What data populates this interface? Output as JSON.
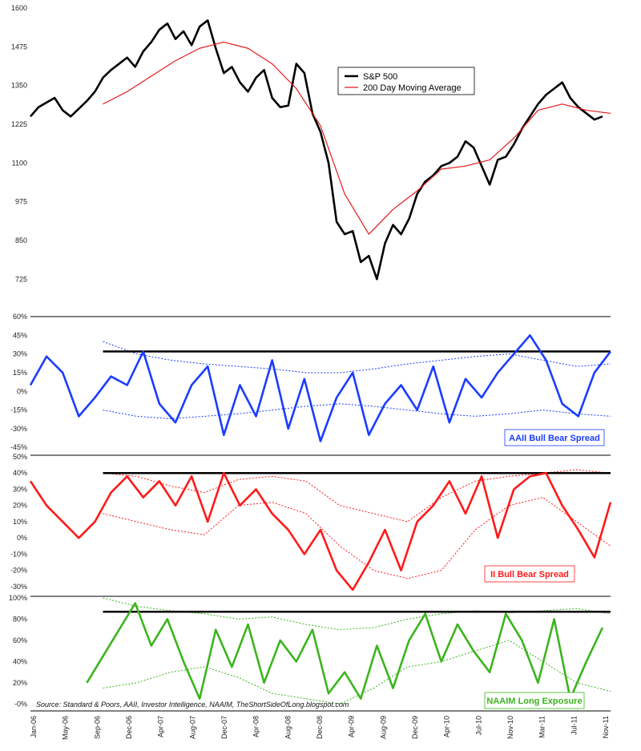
{
  "colors": {
    "sp500": "#000000",
    "ma200": "#e31a1c",
    "aaii": "#1a3cff",
    "ii": "#ff1a1a",
    "naaim": "#3cb41e"
  },
  "source_text": "Source: Standard & Poors, AAII, Investor Intelligence, NAAIM, TheShortSideOfLong.blogspot.com",
  "chart_data": [
    {
      "type": "line",
      "legend": [
        "S&P 500",
        "200 Day Moving Average"
      ],
      "legend_position": "top-right",
      "yticks": [
        "1600",
        "1475",
        "1350",
        "1225",
        "1100",
        "975",
        "850",
        "725"
      ],
      "ylim": [
        630,
        1600
      ],
      "xlim": [
        0,
        72
      ],
      "series": [
        {
          "name": "S&P 500",
          "color": "#000000",
          "x": [
            0,
            1,
            2,
            3,
            4,
            5,
            6,
            7,
            8,
            9,
            10,
            11,
            12,
            13,
            14,
            15,
            16,
            17,
            18,
            19,
            20,
            21,
            22,
            23,
            24,
            25,
            26,
            27,
            28,
            29,
            30,
            31,
            32,
            33,
            34,
            35,
            36,
            37,
            38,
            39,
            40,
            41,
            42,
            43,
            44,
            45,
            46,
            47,
            48,
            49,
            50,
            51,
            52,
            53,
            54,
            55,
            56,
            57,
            58,
            59,
            60,
            61,
            62,
            63,
            64,
            65,
            66,
            67,
            68,
            69,
            70,
            71
          ],
          "values": [
            1250,
            1280,
            1295,
            1310,
            1270,
            1250,
            1275,
            1300,
            1330,
            1375,
            1400,
            1420,
            1440,
            1410,
            1460,
            1490,
            1530,
            1550,
            1500,
            1525,
            1480,
            1540,
            1560,
            1470,
            1390,
            1410,
            1360,
            1330,
            1375,
            1400,
            1310,
            1280,
            1285,
            1420,
            1390,
            1260,
            1200,
            1100,
            910,
            870,
            880,
            780,
            800,
            725,
            840,
            900,
            870,
            920,
            1000,
            1040,
            1060,
            1090,
            1100,
            1120,
            1170,
            1150,
            1090,
            1030,
            1110,
            1120,
            1160,
            1210,
            1250,
            1290,
            1320,
            1340,
            1360,
            1310,
            1280,
            1260,
            1240,
            1250
          ]
        },
        {
          "name": "200 Day Moving Average",
          "color": "#e31a1c",
          "x": [
            9,
            12,
            15,
            18,
            21,
            24,
            27,
            30,
            33,
            36,
            39,
            42,
            45,
            48,
            51,
            54,
            57,
            60,
            63,
            66,
            69,
            72
          ],
          "values": [
            1290,
            1330,
            1380,
            1430,
            1470,
            1490,
            1470,
            1420,
            1340,
            1220,
            1000,
            870,
            950,
            1010,
            1080,
            1090,
            1110,
            1180,
            1270,
            1290,
            1270,
            1260
          ]
        }
      ]
    },
    {
      "type": "line",
      "legend": [
        "AAII Bull Bear Spread"
      ],
      "yticks": [
        "60%",
        "45%",
        "30%",
        "15%",
        "0%",
        "-15%",
        "-30%",
        "-45%"
      ],
      "ylim": [
        -50,
        60
      ],
      "series": [
        {
          "name": "AAII Bull Bear Spread",
          "color": "#1a3cff",
          "x": [
            0,
            2,
            4,
            6,
            8,
            10,
            12,
            14,
            16,
            18,
            20,
            22,
            24,
            26,
            28,
            30,
            32,
            34,
            36,
            38,
            40,
            42,
            44,
            46,
            48,
            50,
            52,
            54,
            56,
            58,
            60,
            62,
            64,
            66,
            68,
            70,
            72
          ],
          "values": [
            5,
            28,
            15,
            -20,
            -5,
            12,
            5,
            32,
            -10,
            -25,
            5,
            20,
            -35,
            5,
            -20,
            25,
            -30,
            10,
            -40,
            -5,
            15,
            -35,
            -10,
            5,
            -15,
            20,
            -25,
            10,
            -5,
            15,
            30,
            45,
            25,
            -10,
            -20,
            15,
            32
          ]
        }
      ],
      "bands": {
        "upper": [
          40,
          30,
          25,
          22,
          20,
          18,
          15,
          15,
          18,
          22,
          25,
          28,
          30,
          25,
          20,
          22
        ],
        "lower": [
          -15,
          -20,
          -22,
          -20,
          -18,
          -15,
          -12,
          -10,
          -12,
          -15,
          -18,
          -20,
          -18,
          -15,
          -18,
          -20
        ]
      },
      "reference_level": 32
    },
    {
      "type": "line",
      "legend": [
        "II Bull Bear Spread"
      ],
      "yticks": [
        "50%",
        "40%",
        "30%",
        "20%",
        "10%",
        "0%",
        "-10%",
        "-20%",
        "-30%"
      ],
      "ylim": [
        -35,
        50
      ],
      "series": [
        {
          "name": "II Bull Bear Spread",
          "color": "#ff1a1a",
          "x": [
            0,
            2,
            4,
            6,
            8,
            10,
            12,
            14,
            16,
            18,
            20,
            22,
            24,
            26,
            28,
            30,
            32,
            34,
            36,
            38,
            40,
            42,
            44,
            46,
            48,
            50,
            52,
            54,
            56,
            58,
            60,
            62,
            64,
            66,
            68,
            70,
            72
          ],
          "values": [
            35,
            20,
            10,
            0,
            10,
            28,
            38,
            25,
            35,
            20,
            38,
            10,
            40,
            20,
            30,
            15,
            5,
            -10,
            5,
            -20,
            -32,
            -15,
            5,
            -20,
            10,
            20,
            35,
            15,
            38,
            0,
            30,
            38,
            40,
            20,
            5,
            -12,
            22
          ]
        }
      ],
      "bands": {
        "upper": [
          40,
          38,
          32,
          28,
          36,
          38,
          35,
          20,
          15,
          10,
          25,
          35,
          38,
          40,
          42,
          40
        ],
        "lower": [
          15,
          10,
          5,
          2,
          20,
          22,
          15,
          -5,
          -20,
          -25,
          -20,
          5,
          20,
          25,
          10,
          -5
        ]
      },
      "reference_level": 40
    },
    {
      "type": "line",
      "legend": [
        "NAAIM Long Exposure"
      ],
      "yticks": [
        "100%",
        "80%",
        "60%",
        "40%",
        "20%",
        "-0%"
      ],
      "ylim": [
        -5,
        100
      ],
      "series": [
        {
          "name": "NAAIM Long Exposure",
          "color": "#3cb41e",
          "x": [
            7,
            9,
            11,
            13,
            15,
            17,
            19,
            21,
            23,
            25,
            27,
            29,
            31,
            33,
            35,
            37,
            39,
            41,
            43,
            45,
            47,
            49,
            51,
            53,
            55,
            57,
            59,
            61,
            63,
            65,
            67,
            69,
            71
          ],
          "values": [
            20,
            45,
            70,
            95,
            55,
            80,
            40,
            5,
            70,
            35,
            75,
            20,
            60,
            40,
            70,
            10,
            30,
            5,
            55,
            15,
            60,
            85,
            40,
            75,
            50,
            30,
            85,
            60,
            20,
            80,
            5,
            40,
            72
          ]
        }
      ],
      "bands": {
        "upper": [
          100,
          92,
          88,
          85,
          80,
          82,
          75,
          70,
          72,
          80,
          85,
          88,
          86,
          88,
          90,
          85
        ],
        "lower": [
          15,
          20,
          30,
          35,
          25,
          10,
          5,
          0,
          15,
          35,
          40,
          50,
          60,
          40,
          20,
          12
        ]
      },
      "reference_level": 87
    }
  ],
  "xaxis": {
    "labels": [
      "Jan-06",
      "May-06",
      "Sep-06",
      "Dec-06",
      "Apr-07",
      "Aug-07",
      "Dec-07",
      "Apr-08",
      "Aug-08",
      "Dec-08",
      "Apr-09",
      "Aug-09",
      "Dec-09",
      "Apr-10",
      "Jul-10",
      "Nov-10",
      "Mar-11",
      "Jul-11",
      "Nov-11"
    ]
  }
}
